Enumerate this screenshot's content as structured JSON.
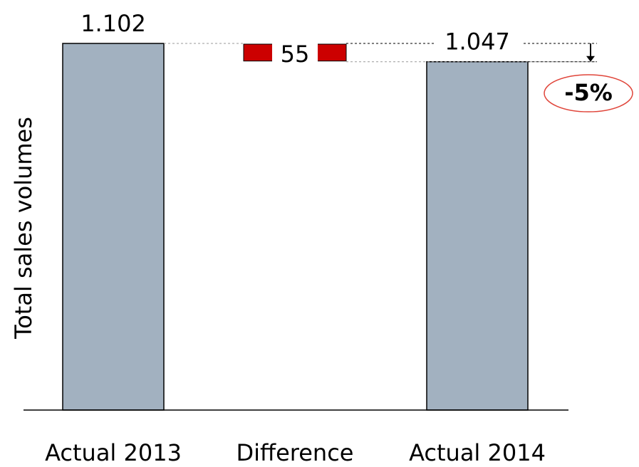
{
  "chart_data": {
    "type": "waterfall",
    "y_label": "Total sales volumes",
    "categories": [
      "Actual 2013",
      "Difference",
      "Actual 2014"
    ],
    "values": [
      1102,
      -55,
      1047
    ],
    "value_labels": [
      "1.102",
      "55",
      "1.047"
    ],
    "colors": {
      "total": "#a2b1c0",
      "decrease": "#cc0000"
    },
    "annotation": "-5%"
  }
}
